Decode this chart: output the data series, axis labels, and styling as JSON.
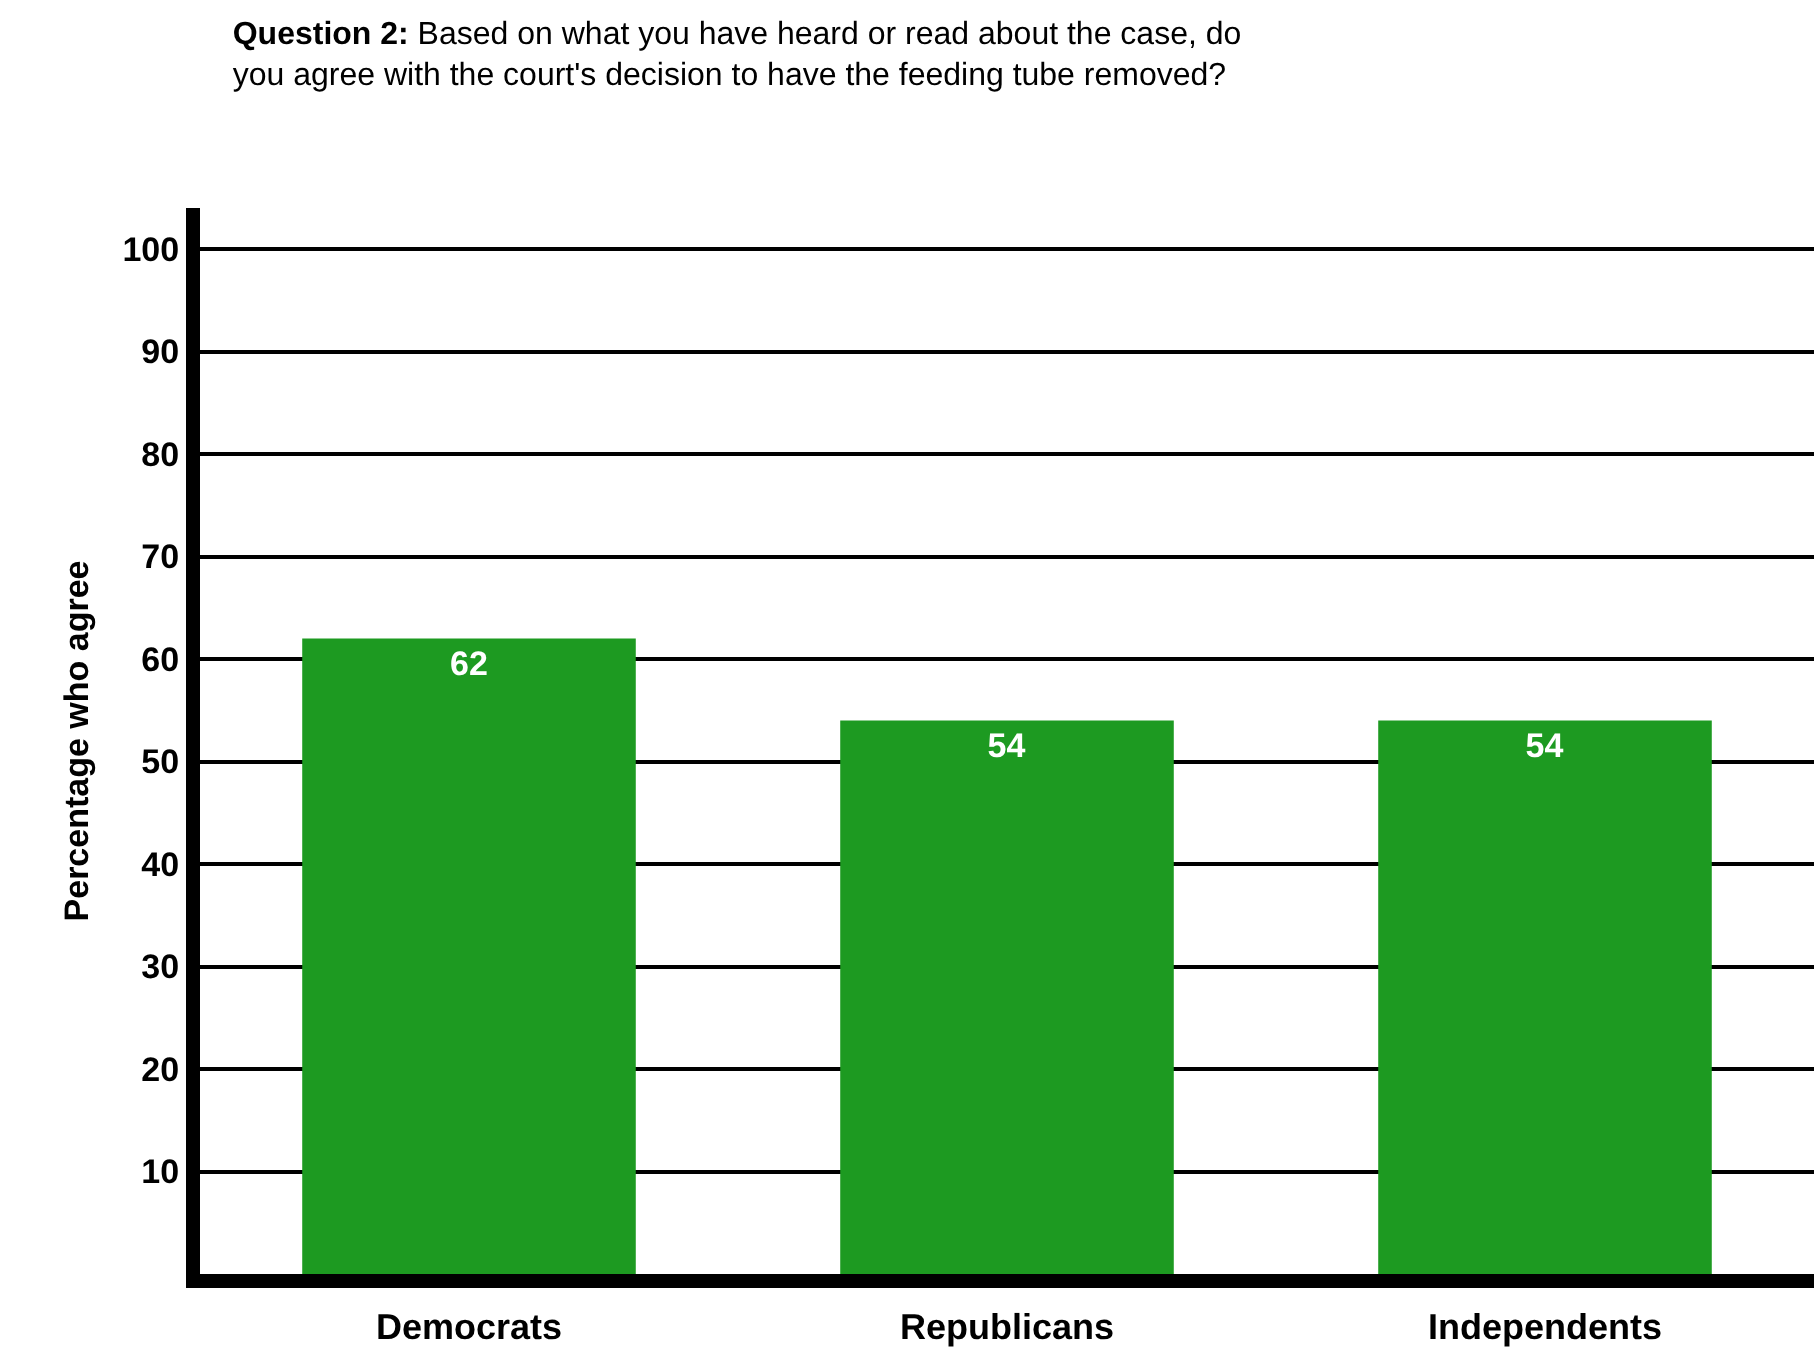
{
  "chart_data": {
    "type": "bar",
    "title": "Question 2: Based on what you have heard or read about the case, do\nyou agree with the court's decision to have the feeding tube removed?",
    "ylabel": "Percentage who agree",
    "categories": [
      "Democrats",
      "Republicans",
      "Independents"
    ],
    "values": [
      62,
      54,
      54
    ],
    "color": "#1d9a21",
    "ylim": [
      0,
      104
    ],
    "yticks": [
      10,
      20,
      30,
      40,
      50,
      60,
      70,
      80,
      90,
      100
    ],
    "grid": "y",
    "data_labels": true,
    "legend": false
  }
}
